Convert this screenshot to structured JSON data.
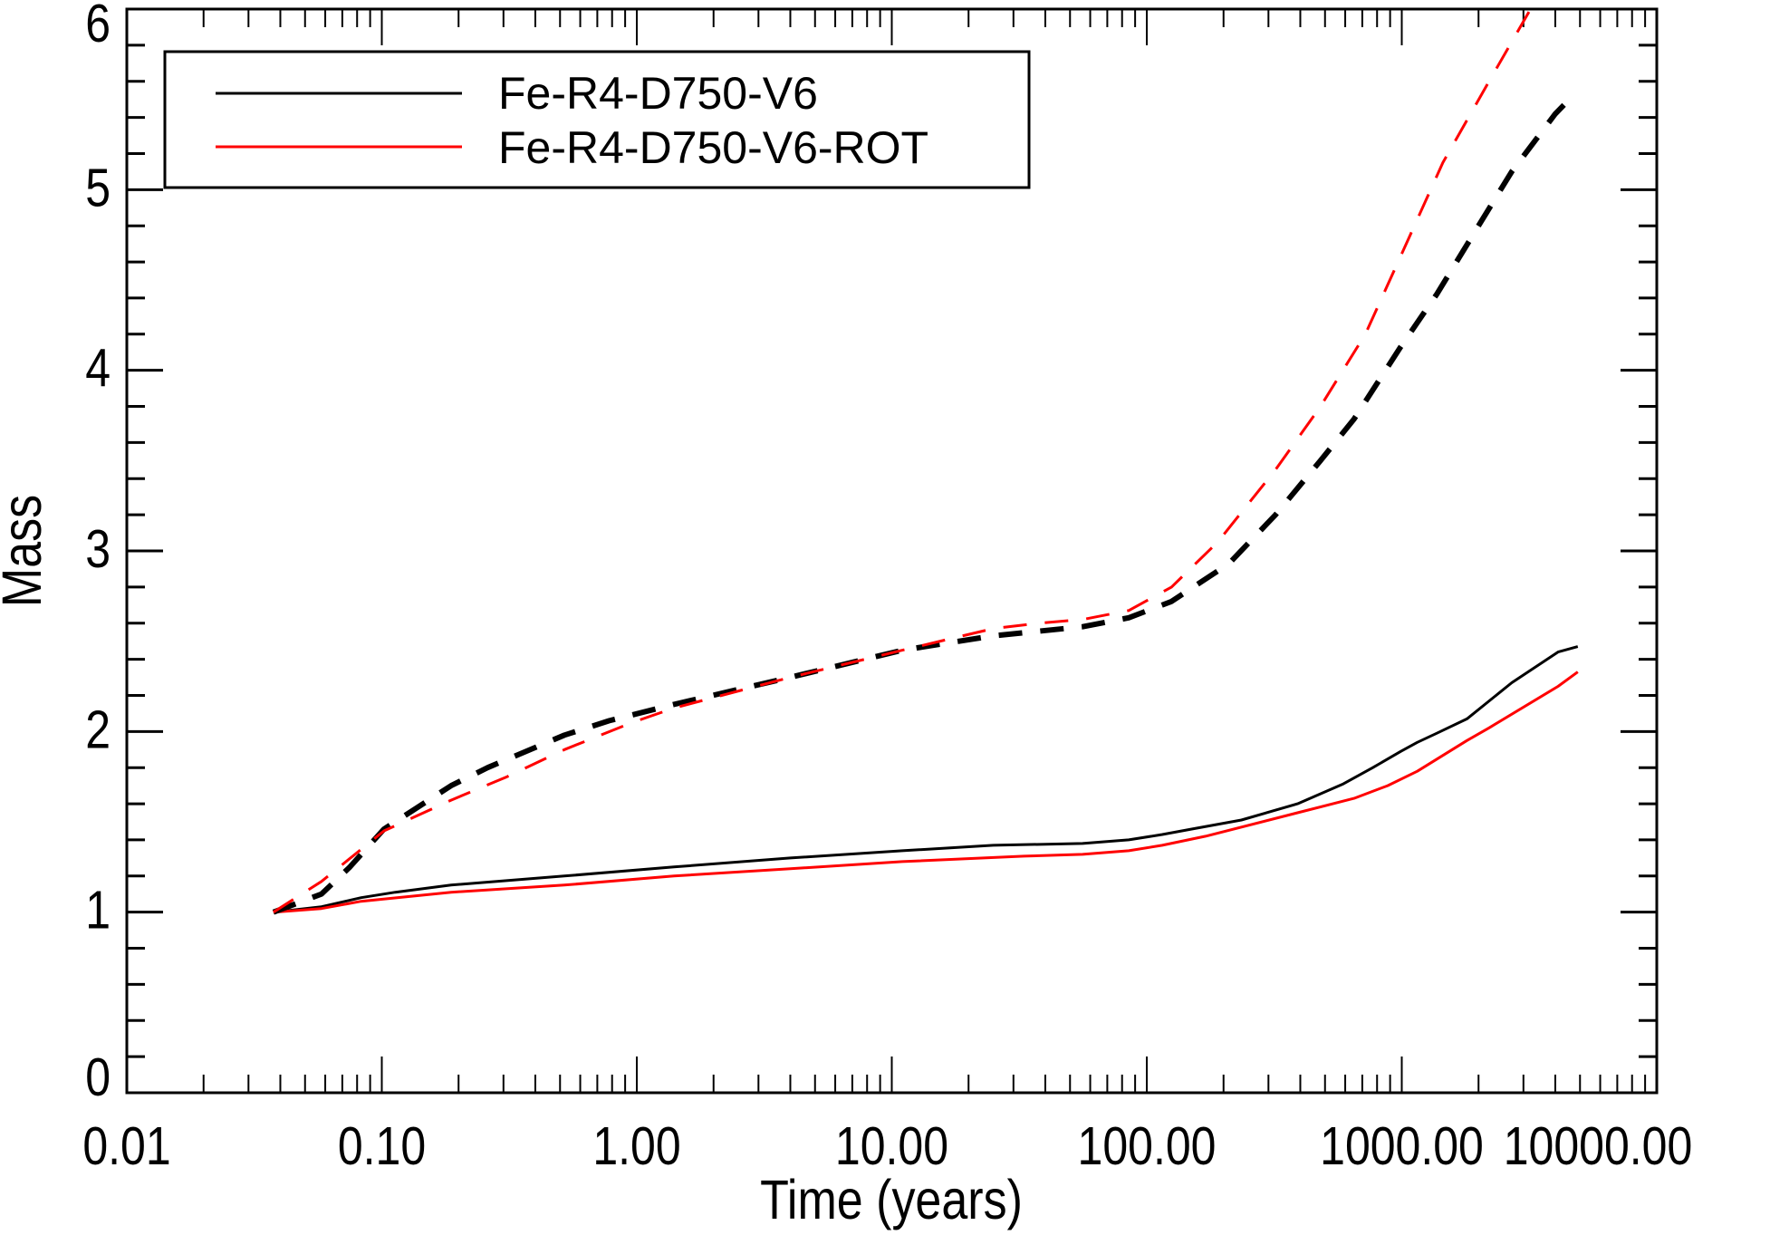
{
  "chart_data": {
    "type": "line",
    "title": "",
    "xlabel": "Time (years)",
    "ylabel": "Mass",
    "xscale": "log",
    "xlim": [
      0.01,
      10000
    ],
    "ylim": [
      0,
      6
    ],
    "x_tick_labels": [
      "0.01",
      "0.10",
      "1.00",
      "10.00",
      "100.00",
      "1000.00",
      "10000.00"
    ],
    "x_tick_values": [
      0.01,
      0.1,
      1,
      10,
      100,
      1000,
      10000
    ],
    "y_tick_labels": [
      "0",
      "1",
      "2",
      "3",
      "4",
      "5",
      "6"
    ],
    "y_tick_values": [
      0,
      1,
      2,
      3,
      4,
      5,
      6
    ],
    "grid": false,
    "legend_position": "top-left",
    "legend": [
      {
        "label": "Fe-R4-D750-V6",
        "color": "#000000"
      },
      {
        "label": "Fe-R4-D750-V6-ROT",
        "color": "#ff0000"
      }
    ],
    "series": [
      {
        "legend_index": 0,
        "style": "solid",
        "color": "#000000",
        "x": [
          0.0376,
          0.058,
          0.083,
          0.113,
          0.187,
          0.52,
          1.4,
          4,
          11,
          25,
          56,
          85,
          115,
          150,
          235,
          390,
          590,
          770,
          990,
          1150,
          1370,
          1800,
          2700,
          4100,
          4900
        ],
        "y": [
          1.0,
          1.03,
          1.08,
          1.11,
          1.15,
          1.2,
          1.25,
          1.3,
          1.34,
          1.37,
          1.38,
          1.4,
          1.43,
          1.46,
          1.51,
          1.6,
          1.71,
          1.8,
          1.89,
          1.94,
          1.99,
          2.07,
          2.27,
          2.44,
          2.47
        ]
      },
      {
        "legend_index": 1,
        "style": "solid",
        "color": "#ff0000",
        "x": [
          0.0376,
          0.058,
          0.083,
          0.187,
          0.52,
          1.4,
          4,
          11,
          33,
          56,
          85,
          115,
          170,
          390,
          650,
          880,
          1150,
          1800,
          2200,
          4100,
          4900
        ],
        "y": [
          1.0,
          1.02,
          1.06,
          1.11,
          1.15,
          1.2,
          1.24,
          1.28,
          1.31,
          1.32,
          1.34,
          1.37,
          1.42,
          1.55,
          1.63,
          1.7,
          1.78,
          1.95,
          2.02,
          2.25,
          2.33
        ]
      },
      {
        "legend_index": 0,
        "style": "dashed",
        "color": "#000000",
        "x": [
          0.0376,
          0.058,
          0.075,
          0.102,
          0.187,
          0.26,
          0.52,
          0.78,
          1.4,
          4,
          11,
          25,
          56,
          85,
          125,
          210,
          320,
          480,
          650,
          990,
          1370,
          2000,
          2700,
          4000,
          4400
        ],
        "y": [
          1.0,
          1.1,
          1.25,
          1.46,
          1.7,
          1.8,
          1.98,
          2.06,
          2.15,
          2.3,
          2.45,
          2.53,
          2.58,
          2.63,
          2.72,
          2.93,
          3.2,
          3.5,
          3.73,
          4.13,
          4.42,
          4.8,
          5.1,
          5.42,
          5.48
        ]
      },
      {
        "legend_index": 1,
        "style": "dashed",
        "color": "#ff0000",
        "x": [
          0.0376,
          0.058,
          0.102,
          0.187,
          0.31,
          0.52,
          0.96,
          1.4,
          4,
          11,
          25,
          38,
          56,
          85,
          125,
          190,
          320,
          480,
          720,
          1080,
          1450,
          2200,
          3200
        ],
        "y": [
          1.0,
          1.17,
          1.45,
          1.62,
          1.75,
          1.9,
          2.05,
          2.13,
          2.3,
          2.45,
          2.57,
          2.6,
          2.62,
          2.67,
          2.8,
          3.05,
          3.45,
          3.8,
          4.2,
          4.75,
          5.15,
          5.6,
          6.0
        ]
      }
    ]
  }
}
